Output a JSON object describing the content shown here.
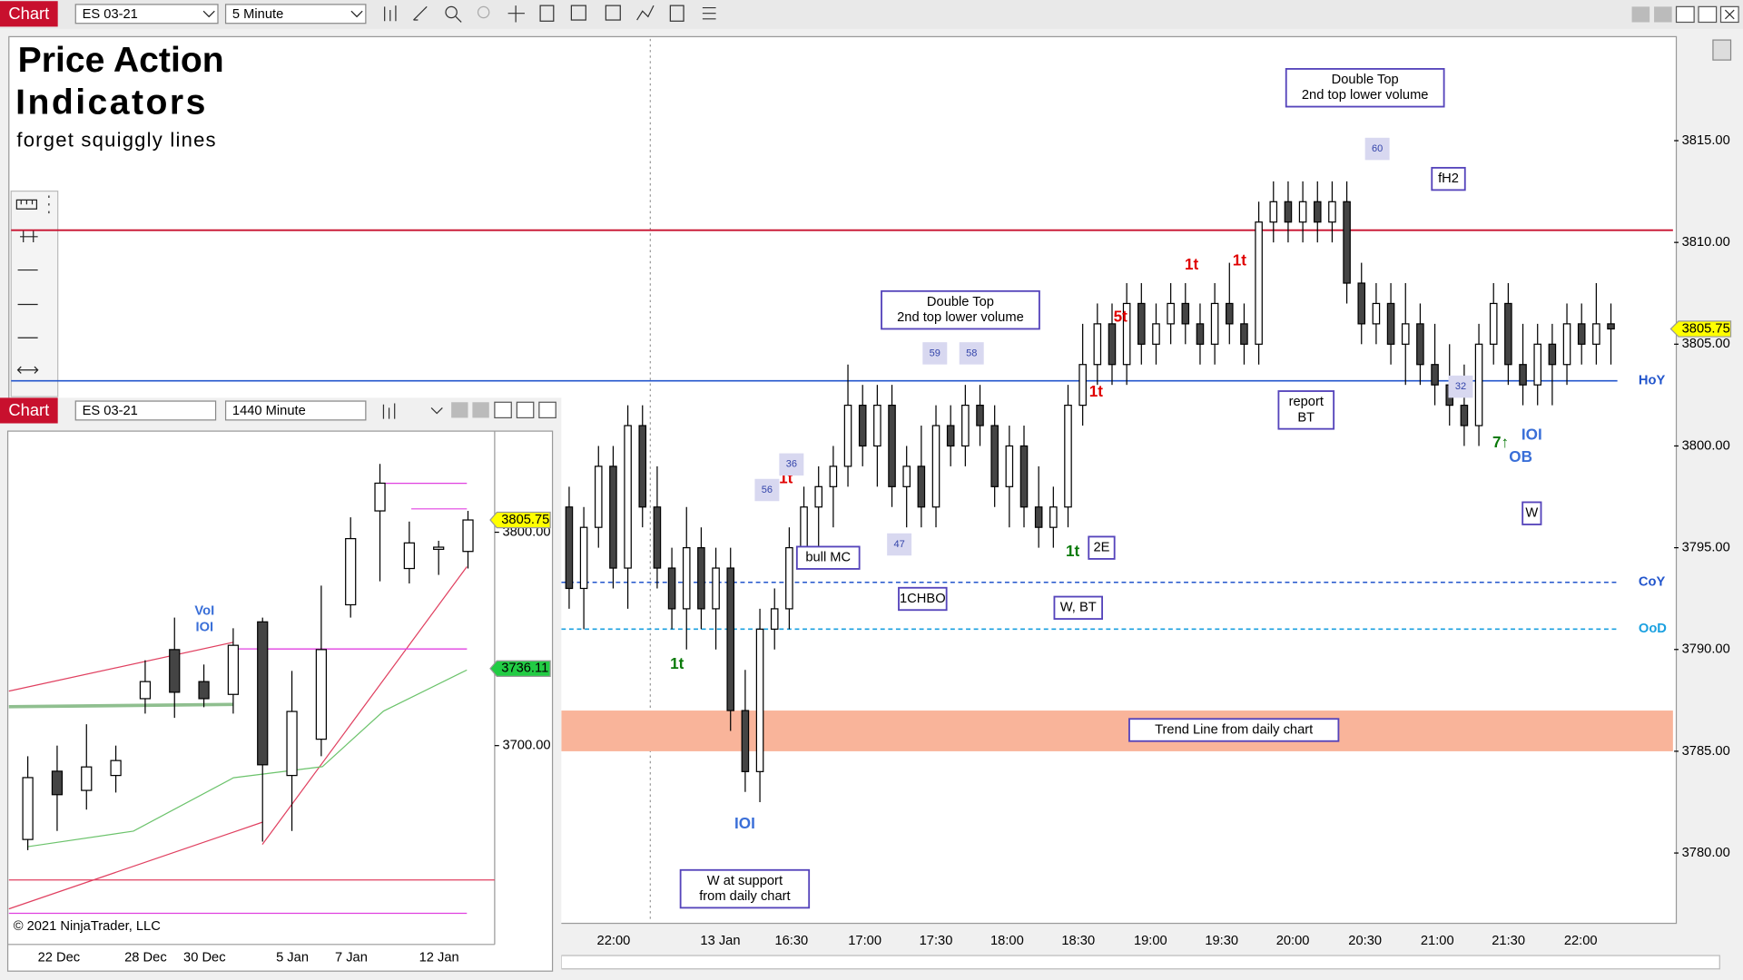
{
  "toolbar": {
    "label": "Chart",
    "instrument": "ES 03-21",
    "interval": "5 Minute"
  },
  "chart_data": [
    {
      "type": "candlestick",
      "title": "Price Action",
      "subtitle": "Indicators",
      "note": "forget squiggly lines",
      "open": [
        3797,
        3793,
        3796,
        3799,
        3794,
        3801,
        3797,
        3794,
        3792,
        3795,
        3792,
        3794,
        3787,
        3784,
        3791,
        3792,
        3795,
        3797,
        3798,
        3799,
        3802,
        3800,
        3802,
        3798,
        3799,
        3797,
        3801,
        3800,
        3802,
        3801,
        3798,
        3800,
        3797,
        3796,
        3797,
        3802,
        3804,
        3806,
        3804,
        3807,
        3805,
        3806,
        3807,
        3806,
        3805,
        3807,
        3806,
        3805,
        3811,
        3812,
        3811,
        3812,
        3811,
        3812,
        3808,
        3806,
        3807,
        3805,
        3806,
        3804,
        3803,
        3802,
        3801,
        3805,
        3807,
        3804,
        3803,
        3805,
        3804,
        3806,
        3805,
        3806
      ],
      "high": [
        3798,
        3797,
        3800,
        3800,
        3802,
        3802,
        3799,
        3795,
        3797,
        3796,
        3795,
        3795,
        3789,
        3792,
        3793,
        3796,
        3798,
        3799,
        3800,
        3804,
        3803,
        3803,
        3803,
        3800,
        3801,
        3802,
        3802,
        3803,
        3803,
        3802,
        3801,
        3801,
        3799,
        3798,
        3803,
        3806,
        3807,
        3807,
        3808,
        3808,
        3807,
        3808,
        3808,
        3807,
        3808,
        3809,
        3807,
        3812,
        3813,
        3813,
        3813,
        3813,
        3813,
        3813,
        3809,
        3808,
        3808,
        3808,
        3807,
        3806,
        3805,
        3804,
        3806,
        3808,
        3808,
        3806,
        3806,
        3806,
        3807,
        3807,
        3808,
        3807
      ],
      "low": [
        3792,
        3791,
        3795,
        3793,
        3792,
        3796,
        3793,
        3791,
        3790,
        3791,
        3790,
        3786,
        3783,
        3782.5,
        3790,
        3791,
        3794,
        3795,
        3796,
        3798,
        3799,
        3798,
        3797,
        3796,
        3796,
        3796,
        3799,
        3799,
        3800,
        3797,
        3796,
        3796,
        3795,
        3795,
        3796,
        3801,
        3803,
        3803,
        3803,
        3804,
        3804,
        3805,
        3805,
        3804,
        3804,
        3805,
        3804,
        3804,
        3810,
        3810,
        3810,
        3810,
        3810,
        3807,
        3805,
        3805,
        3804,
        3803,
        3803,
        3802,
        3801,
        3800,
        3800,
        3804,
        3803,
        3802,
        3802,
        3802,
        3803,
        3804,
        3804,
        3804
      ],
      "close": [
        3793,
        3796,
        3799,
        3794,
        3801,
        3797,
        3794,
        3792,
        3795,
        3792,
        3794,
        3787,
        3784,
        3791,
        3792,
        3795,
        3797,
        3798,
        3799,
        3802,
        3800,
        3802,
        3798,
        3799,
        3797,
        3801,
        3800,
        3802,
        3801,
        3798,
        3800,
        3797,
        3796,
        3797,
        3802,
        3804,
        3806,
        3804,
        3807,
        3805,
        3806,
        3807,
        3806,
        3805,
        3807,
        3806,
        3805,
        3811,
        3812,
        3811,
        3812,
        3811,
        3812,
        3808,
        3806,
        3807,
        3805,
        3806,
        3804,
        3803,
        3802,
        3801,
        3805,
        3807,
        3804,
        3803,
        3805,
        3804,
        3806,
        3805,
        3806,
        3805.75
      ],
      "ylim": [
        3776.6,
        3820
      ],
      "yticks": [
        {
          "value": 3780,
          "label": "3780.00"
        },
        {
          "value": 3785,
          "label": "3785.00"
        },
        {
          "value": 3790,
          "label": "3790.00"
        },
        {
          "value": 3795,
          "label": "3795.00"
        },
        {
          "value": 3800,
          "label": "3800.00"
        },
        {
          "value": 3805,
          "label": "3805.00"
        },
        {
          "value": 3810,
          "label": "3810.00"
        },
        {
          "value": 3815,
          "label": "3815.00"
        }
      ],
      "xticks": [
        "22:00",
        "13 Jan",
        "16:30",
        "17:00",
        "17:30",
        "18:00",
        "18:30",
        "19:00",
        "19:30",
        "20:00",
        "20:30",
        "21:00",
        "21:30",
        "22:00"
      ],
      "last_price": 3805.75,
      "levels": [
        {
          "name": "HoY",
          "value": 3803.2,
          "color": "#2255cc"
        },
        {
          "name": "CoY",
          "value": 3793.3,
          "color": "#2255cc"
        },
        {
          "name": "OoD",
          "value": 3791,
          "color": "#1aa0e0"
        }
      ],
      "resistance": 3810.6,
      "zone": [
        3785,
        3787
      ],
      "annotations": [
        {
          "lines": [
            "Double Top",
            "2nd top lower volume"
          ],
          "box": true,
          "color": "#000000"
        },
        {
          "lines": [
            "Double Top",
            "2nd top lower volume"
          ],
          "box": true,
          "color": "#000000"
        },
        {
          "lines": [
            "bull MC"
          ],
          "box": true,
          "color": "#000000"
        },
        {
          "lines": [
            "1CHBO"
          ],
          "box": true,
          "color": "#000000"
        },
        {
          "lines": [
            "W, BT"
          ],
          "box": true,
          "color": "#000000"
        },
        {
          "lines": [
            "2E"
          ],
          "box": true,
          "color": "#000000"
        },
        {
          "lines": [
            "report",
            "BT"
          ],
          "box": true,
          "color": "#000000"
        },
        {
          "lines": [
            "fH2"
          ],
          "box": true,
          "color": "#000000"
        },
        {
          "lines": [
            "W"
          ],
          "box": true,
          "color": "#000000"
        },
        {
          "lines": [
            "W at support",
            "from daily chart"
          ],
          "box": true,
          "color": "#000000"
        },
        {
          "lines": [
            "Trend Line from daily chart"
          ],
          "box": true,
          "color": "#000000"
        },
        {
          "lines": [
            "IOI"
          ],
          "box": false,
          "color": "#3a6fd8"
        },
        {
          "lines": [
            "IOI"
          ],
          "box": false,
          "color": "#3a6fd8"
        },
        {
          "lines": [
            "OB"
          ],
          "box": false,
          "color": "#3a6fd8"
        },
        {
          "lines": [
            "1t"
          ],
          "box": false,
          "color": "#e00000"
        },
        {
          "lines": [
            "1t"
          ],
          "box": false,
          "color": "#e00000"
        },
        {
          "lines": [
            "1t"
          ],
          "box": false,
          "color": "#e00000"
        },
        {
          "lines": [
            "1t"
          ],
          "box": false,
          "color": "#e00000"
        },
        {
          "lines": [
            "5t"
          ],
          "box": false,
          "color": "#e00000"
        },
        {
          "lines": [
            "1t"
          ],
          "box": false,
          "color": "#0a7a0a"
        },
        {
          "lines": [
            "1t"
          ],
          "box": false,
          "color": "#0a7a0a"
        },
        {
          "lines": [
            "7↑"
          ],
          "box": false,
          "color": "#0a7a0a"
        },
        {
          "lines": [
            "59"
          ],
          "box": false,
          "color": "#3344aa"
        },
        {
          "lines": [
            "58"
          ],
          "box": false,
          "color": "#3344aa"
        },
        {
          "lines": [
            "60"
          ],
          "box": false,
          "color": "#3344aa"
        },
        {
          "lines": [
            "36"
          ],
          "box": false,
          "color": "#3344aa"
        },
        {
          "lines": [
            "56"
          ],
          "box": false,
          "color": "#3344aa"
        },
        {
          "lines": [
            "47"
          ],
          "box": false,
          "color": "#3344aa"
        },
        {
          "lines": [
            "32"
          ],
          "box": false,
          "color": "#3344aa"
        }
      ]
    },
    {
      "type": "candlestick",
      "toolbar": {
        "label": "Chart",
        "instrument": "ES 03-21",
        "interval": "1440 Minute"
      },
      "open": [
        3656,
        3688,
        3679,
        3686,
        3722,
        3745,
        3730,
        3724,
        3758,
        3686,
        3703,
        3766,
        3810,
        3783,
        3792,
        3791
      ],
      "high": [
        3695,
        3700,
        3710,
        3700,
        3740,
        3760,
        3738,
        3755,
        3760,
        3735,
        3775,
        3807,
        3832,
        3805,
        3796,
        3810
      ],
      "low": [
        3651,
        3660,
        3670,
        3678,
        3715,
        3713,
        3718,
        3715,
        3655,
        3660,
        3695,
        3760,
        3777,
        3776,
        3780,
        3783
      ],
      "close": [
        3685,
        3677,
        3690,
        3693,
        3730,
        3725,
        3722,
        3747,
        3691,
        3716,
        3745,
        3797,
        3823,
        3795,
        3793,
        3805.75
      ],
      "ylim": [
        3606.8,
        3847.4
      ],
      "yticks": [
        {
          "value": 3700,
          "label": "3700.00"
        },
        {
          "value": 3800,
          "label": "3800.00"
        }
      ],
      "xticks": [
        "22 Dec",
        "28 Dec",
        "30 Dec",
        "5 Jan",
        "7 Jan",
        "12 Jan"
      ],
      "price_markers": [
        3805.75,
        3736.11
      ],
      "annotations": [
        "VoI",
        "IOI"
      ],
      "copyright": "© 2021 NinjaTrader, LLC"
    }
  ]
}
